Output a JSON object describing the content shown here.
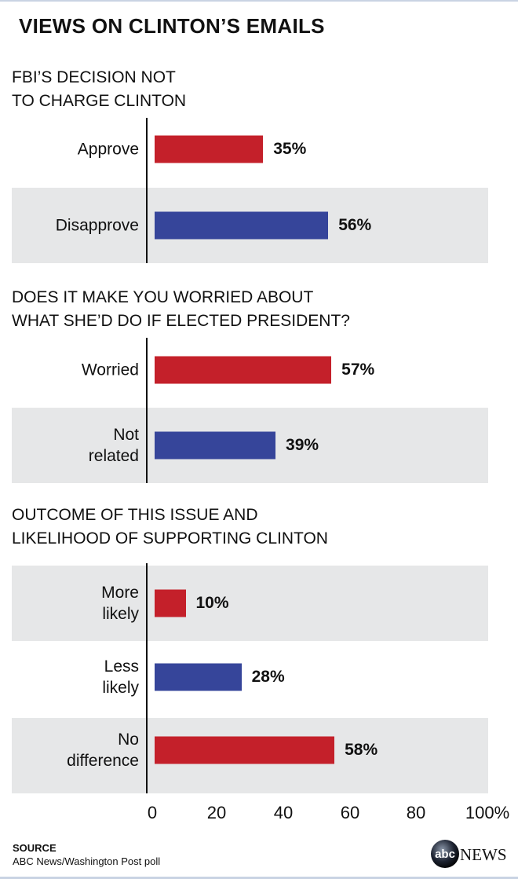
{
  "chart_data": {
    "type": "bar",
    "title": "VIEWS ON CLINTON’S EMAILS",
    "xlim": [
      0,
      100
    ],
    "x_ticks": [
      "0",
      "20",
      "40",
      "60",
      "80",
      "100%"
    ],
    "colors": {
      "red": "#c4202a",
      "blue": "#36459a",
      "band": "#e6e7e8"
    },
    "panels": [
      {
        "heading": [
          "FBI’S DECISION NOT",
          "TO CHARGE CLINTON"
        ],
        "categories": [
          "Approve",
          "Disapprove"
        ],
        "values": [
          35,
          56
        ],
        "labels": [
          "35%",
          "56%"
        ],
        "colors": [
          "red",
          "blue"
        ]
      },
      {
        "heading": [
          "DOES IT MAKE YOU WORRIED ABOUT",
          "WHAT SHE’D DO IF ELECTED PRESIDENT?"
        ],
        "categories": [
          "Worried",
          "Not\nrelated"
        ],
        "values": [
          57,
          39
        ],
        "labels": [
          "57%",
          "39%"
        ],
        "colors": [
          "red",
          "blue"
        ]
      },
      {
        "heading": [
          "OUTCOME OF THIS ISSUE AND",
          "LIKELIHOOD OF SUPPORTING CLINTON"
        ],
        "categories": [
          "More\nlikely",
          "Less\nlikely",
          "No\ndifference"
        ],
        "values": [
          10,
          28,
          58
        ],
        "labels": [
          "10%",
          "28%",
          "58%"
        ],
        "colors": [
          "red",
          "blue",
          "red"
        ]
      }
    ]
  },
  "source": {
    "heading": "SOURCE",
    "text": "ABC News/Washington Post poll"
  },
  "logo": {
    "text": "abc NEWS"
  }
}
